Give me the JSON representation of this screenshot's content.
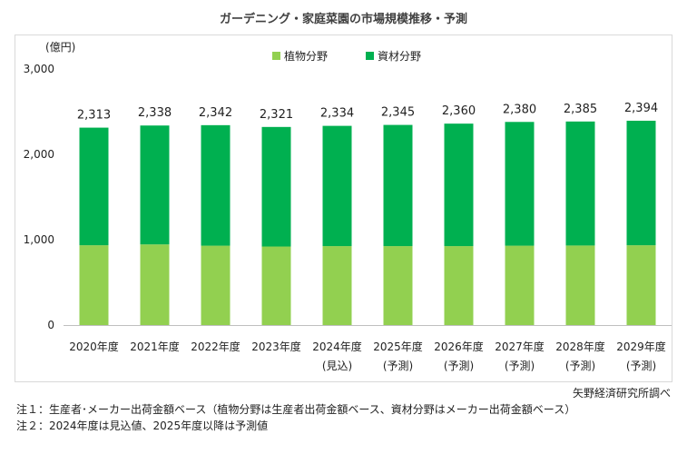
{
  "chart_data": {
    "type": "bar",
    "stacked": true,
    "title": "ガーデニング・家庭菜園の市場規模推移・予測",
    "unit_label": "(億円)",
    "categories": [
      "2020年度",
      "2021年度",
      "2022年度",
      "2023年度",
      "2024年度",
      "2025年度",
      "2026年度",
      "2027年度",
      "2028年度",
      "2029年度"
    ],
    "category_notes": [
      "",
      "",
      "",
      "",
      "(見込)",
      "(予測)",
      "(予測)",
      "(予測)",
      "(予測)",
      "(予測)"
    ],
    "series": [
      {
        "name": "植物分野",
        "color": "#92d050",
        "values": [
          935,
          945,
          930,
          920,
          925,
          925,
          925,
          930,
          932,
          935
        ]
      },
      {
        "name": "資材分野",
        "color": "#00b050",
        "values": [
          1378,
          1393,
          1412,
          1401,
          1409,
          1420,
          1435,
          1450,
          1453,
          1459
        ]
      }
    ],
    "totals": [
      "2,313",
      "2,338",
      "2,342",
      "2,321",
      "2,334",
      "2,345",
      "2,360",
      "2,380",
      "2,385",
      "2,394"
    ],
    "total_values": [
      2313,
      2338,
      2342,
      2321,
      2334,
      2345,
      2360,
      2380,
      2385,
      2394
    ],
    "y_ticks": [
      0,
      1000,
      2000,
      3000
    ],
    "y_tick_labels": [
      "0",
      "1,000",
      "2,000",
      "3,000"
    ],
    "ylim": [
      0,
      3000
    ],
    "legend_position": "top-center",
    "grid": false
  },
  "source": "矢野経済研究所調べ",
  "notes": [
    "注１：生産者･メーカー出荷金額ベース（植物分野は生産者出荷金額ベース、資材分野はメーカー出荷金額ベース）",
    "注２：2024年度は見込値、2025年度以降は予測値"
  ]
}
